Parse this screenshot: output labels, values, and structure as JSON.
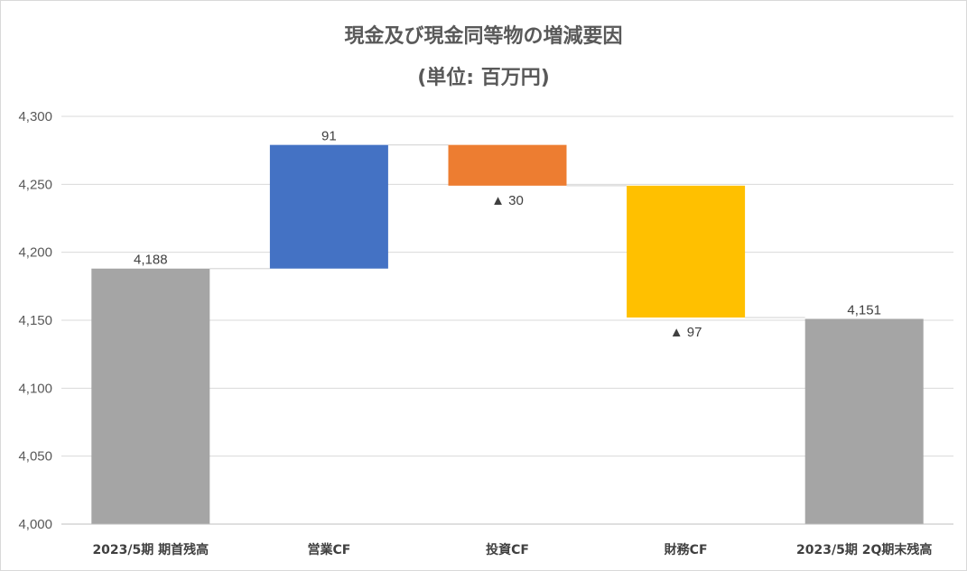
{
  "chart_data": {
    "type": "bar",
    "subtype": "waterfall",
    "title": "現金及び現金同等物の増減要因",
    "subtitle": "(単位: 百万円)",
    "categories": [
      "2023/5期 期首残高",
      "営業CF",
      "投資CF",
      "財務CF",
      "2023/5期 2Q期末残高"
    ],
    "ylim": [
      4000,
      4300
    ],
    "yticks": [
      4000,
      4050,
      4100,
      4150,
      4200,
      4250,
      4300
    ],
    "ytick_labels": [
      "4,000",
      "4,050",
      "4,100",
      "4,150",
      "4,200",
      "4,250",
      "4,300"
    ],
    "grid": true,
    "bars": [
      {
        "kind": "total",
        "start": 4000,
        "end": 4188,
        "label": "4,188",
        "label_pos": "above",
        "color": "#a5a5a5"
      },
      {
        "kind": "delta",
        "start": 4188,
        "end": 4279,
        "label": "91",
        "label_pos": "above",
        "color": "#4472c4"
      },
      {
        "kind": "delta",
        "start": 4279,
        "end": 4249,
        "label": "▲ 30",
        "label_pos": "below",
        "color": "#ed7d31"
      },
      {
        "kind": "delta",
        "start": 4249,
        "end": 4152,
        "label": "▲ 97",
        "label_pos": "below",
        "color": "#ffc000"
      },
      {
        "kind": "total",
        "start": 4000,
        "end": 4151,
        "label": "4,151",
        "label_pos": "above",
        "color": "#a5a5a5"
      }
    ]
  }
}
